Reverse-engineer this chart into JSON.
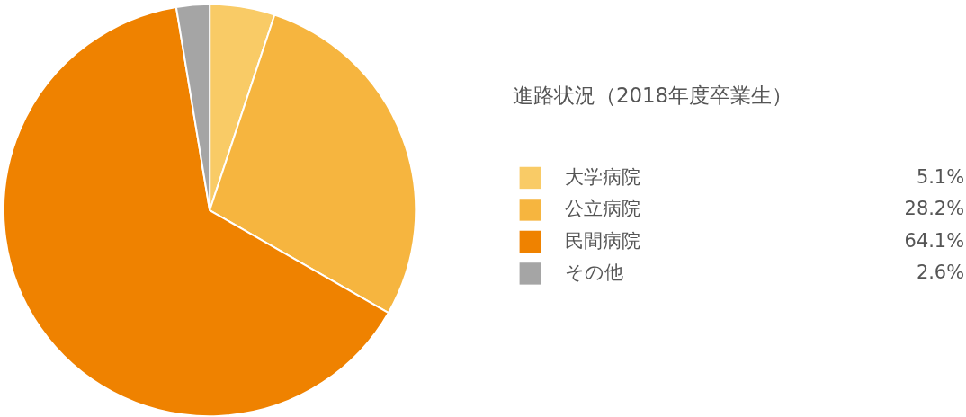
{
  "chart_data": {
    "type": "pie",
    "legend_title": "進路状況（2018年度卒業生）",
    "categories": [
      "大学病院",
      "公立病院",
      "民間病院",
      "その他"
    ],
    "values": [
      5.1,
      28.2,
      64.1,
      2.6
    ],
    "colors": [
      "#f9cb66",
      "#f6b53f",
      "#ef8200",
      "#a5a5a5"
    ],
    "value_labels": [
      "5.1%",
      "28.2%",
      "64.1%",
      "2.6%"
    ],
    "legend": "right"
  }
}
